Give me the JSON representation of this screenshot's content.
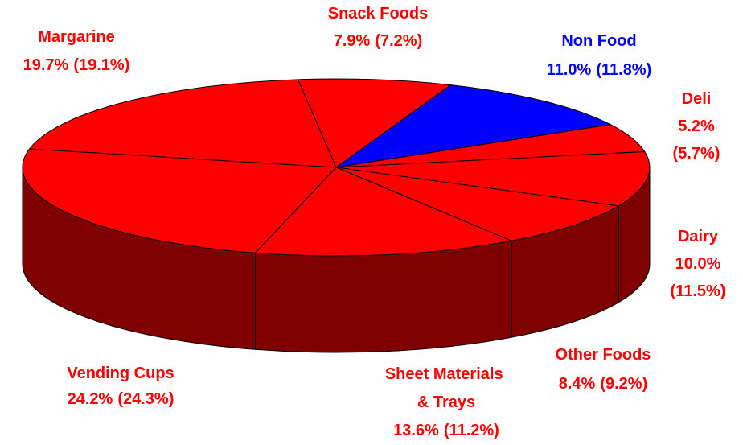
{
  "chart_data": {
    "type": "pie",
    "three_d": true,
    "categories": [
      "Snack Foods",
      "Non Food",
      "Deli",
      "Dairy",
      "Other Foods",
      "Sheet Materials & Trays",
      "Vending Cups",
      "Margarine"
    ],
    "values": [
      7.9,
      11.0,
      5.2,
      10.0,
      8.4,
      13.6,
      24.2,
      19.7
    ],
    "value_labels": [
      "7.9%",
      "11.0%",
      "5.2%",
      "10.0%",
      "8.4%",
      "13.6%",
      "24.2%",
      "19.7%"
    ],
    "values2": [
      7.2,
      11.8,
      5.7,
      11.5,
      9.2,
      11.2,
      24.3,
      19.1
    ],
    "value2_labels": [
      "(7.2%)",
      "(11.8%)",
      "(5.7%)",
      "(11.5%)",
      "(9.2%)",
      "(11.2%)",
      "(24.3%)",
      "(19.1%)"
    ],
    "colors": [
      "#ff0000",
      "#0000ff",
      "#ff0000",
      "#ff0000",
      "#ff0000",
      "#ff0000",
      "#ff0000",
      "#ff0000"
    ],
    "side_colors": [
      "#800000",
      "#000080",
      "#800000",
      "#800000",
      "#800000",
      "#800000",
      "#800000",
      "#800000"
    ]
  }
}
